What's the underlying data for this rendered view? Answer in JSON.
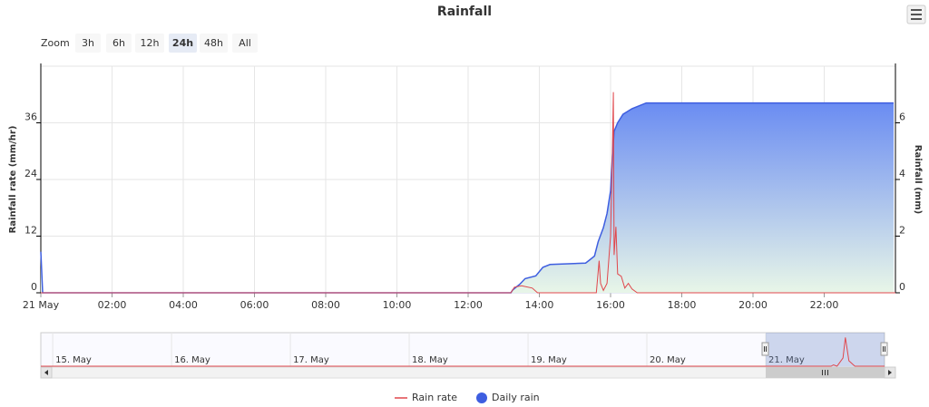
{
  "chart_data": {
    "type": "line",
    "title": "Rainfall",
    "zoom": {
      "label": "Zoom",
      "buttons": [
        "3h",
        "6h",
        "12h",
        "24h",
        "48h",
        "All"
      ],
      "selected": 3
    },
    "xlim": [
      0,
      24
    ],
    "xticks": [
      {
        "value": 0,
        "label": "21 May"
      },
      {
        "value": 2,
        "label": "02:00"
      },
      {
        "value": 4,
        "label": "04:00"
      },
      {
        "value": 6,
        "label": "06:00"
      },
      {
        "value": 8,
        "label": "08:00"
      },
      {
        "value": 10,
        "label": "10:00"
      },
      {
        "value": 12,
        "label": "12:00"
      },
      {
        "value": 14,
        "label": "14:00"
      },
      {
        "value": 16,
        "label": "16:00"
      },
      {
        "value": 18,
        "label": "18:00"
      },
      {
        "value": 20,
        "label": "20:00"
      },
      {
        "value": 22,
        "label": "22:00"
      }
    ],
    "ylabel": "Rainfall rate (mm/hr)",
    "ylim": [
      0,
      48
    ],
    "yticks": [
      0,
      12,
      24,
      36
    ],
    "y2label": "Rainfall (mm)",
    "y2lim": [
      0,
      8
    ],
    "y2ticks": [
      0,
      2,
      4,
      6
    ],
    "grid": true,
    "series": [
      {
        "name": "Rain rate",
        "color": "#e0474c",
        "axis": "y",
        "type": "line",
        "x": [
          0,
          13.2,
          13.3,
          13.5,
          13.8,
          13.95,
          15.6,
          15.68,
          15.72,
          15.8,
          15.9,
          16.0,
          16.05,
          16.08,
          16.1,
          16.15,
          16.2,
          16.3,
          16.4,
          16.5,
          16.6,
          16.75,
          24
        ],
        "values": [
          0,
          0,
          1.2,
          1.5,
          1.0,
          0,
          0,
          6.8,
          2,
          0.5,
          2,
          12,
          30,
          42.5,
          8,
          14,
          4,
          3.5,
          1,
          2,
          0.8,
          0,
          0
        ]
      },
      {
        "name": "Daily rain",
        "color": "#3e5ee0",
        "axis": "y2",
        "type": "area",
        "x": [
          0,
          0.05,
          13.2,
          13.25,
          13.45,
          13.6,
          13.9,
          14.1,
          14.3,
          15.3,
          15.4,
          15.55,
          15.65,
          15.8,
          15.9,
          16.0,
          16.05,
          16.1,
          16.2,
          16.35,
          16.6,
          17.0,
          23.95
        ],
        "values": [
          1.45,
          0,
          0,
          0.1,
          0.3,
          0.5,
          0.6,
          0.9,
          1.0,
          1.05,
          1.15,
          1.3,
          1.8,
          2.3,
          2.8,
          3.6,
          4.8,
          5.7,
          6.0,
          6.3,
          6.5,
          6.7,
          6.7
        ]
      }
    ],
    "legend": "bottom",
    "navigator": {
      "xlim": [
        -0.1,
        7
      ],
      "ylim": [
        0,
        45
      ],
      "xticks": [
        {
          "value": 0,
          "label": "15. May"
        },
        {
          "value": 1,
          "label": "16. May"
        },
        {
          "value": 2,
          "label": "17. May"
        },
        {
          "value": 3,
          "label": "18. May"
        },
        {
          "value": 4,
          "label": "19. May"
        },
        {
          "value": 5,
          "label": "20. May"
        },
        {
          "value": 6,
          "label": "21. May"
        }
      ],
      "selected": [
        6,
        7
      ],
      "x": [
        -0.1,
        6.55,
        6.57,
        6.6,
        6.65,
        6.67,
        6.7,
        6.75,
        7
      ],
      "values": [
        0,
        0,
        2,
        0,
        12,
        42,
        8,
        0,
        0
      ]
    }
  }
}
